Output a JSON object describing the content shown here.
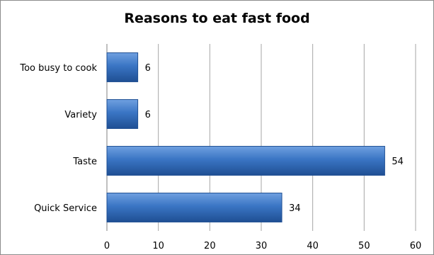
{
  "chart_data": {
    "type": "bar",
    "orientation": "horizontal",
    "title": "Reasons to eat fast food",
    "xlabel": "",
    "ylabel": "",
    "categories": [
      "Too busy to cook",
      "Variety",
      "Taste",
      "Quick Service"
    ],
    "values": [
      6,
      6,
      54,
      34
    ],
    "xlim": [
      0,
      60
    ],
    "xticks": [
      0,
      10,
      20,
      30,
      40,
      50,
      60
    ],
    "grid": "vertical",
    "legend": "none",
    "colors": {
      "bar": "#3a75c4",
      "bar_light": "#6fa0e0",
      "bar_dark": "#1f4f93",
      "grid": "#a6a6a6",
      "axis": "#808080"
    }
  }
}
